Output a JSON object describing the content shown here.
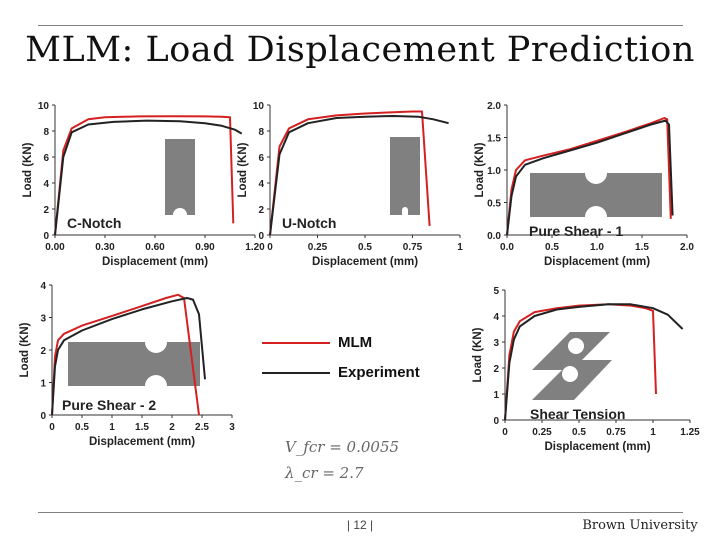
{
  "title": "MLM: Load Displacement Prediction",
  "footer": {
    "page": "| 12 |",
    "brand": "Brown University"
  },
  "colors": {
    "mlm": "#d42020",
    "experiment": "#222222",
    "specimen": "#808080"
  },
  "legend": {
    "mlm": "MLM",
    "experiment": "Experiment"
  },
  "equations": [
    "V_fcr = 0.0055",
    "λ_cr = 2.7"
  ],
  "chart_data": [
    {
      "id": "c-notch",
      "type": "line",
      "label": "C-Notch",
      "xlabel": "Displacement (mm)",
      "ylabel": "Load (KN)",
      "xlim": [
        0,
        1.2
      ],
      "ylim": [
        0,
        10
      ],
      "xticks": [
        0,
        0.3,
        0.6,
        0.9,
        1.2
      ],
      "xtick_labels": [
        "0.00",
        "0.30",
        "0.60",
        "0.90",
        "1.20"
      ],
      "yticks": [
        0,
        2,
        4,
        6,
        8,
        10
      ],
      "ytick_labels": [
        "0",
        "2",
        "4",
        "6",
        "8",
        "10"
      ],
      "series": [
        {
          "name": "MLM",
          "x": [
            0,
            0.05,
            0.1,
            0.2,
            0.3,
            0.5,
            0.7,
            0.9,
            1.0,
            1.05,
            1.07
          ],
          "y": [
            0,
            6.5,
            8.2,
            8.9,
            9.05,
            9.12,
            9.13,
            9.12,
            9.1,
            9.05,
            0.9
          ]
        },
        {
          "name": "Experiment",
          "x": [
            0,
            0.05,
            0.1,
            0.2,
            0.35,
            0.55,
            0.75,
            0.9,
            1.0,
            1.08,
            1.12
          ],
          "y": [
            0,
            6,
            7.9,
            8.5,
            8.7,
            8.8,
            8.75,
            8.6,
            8.4,
            8.1,
            7.8
          ]
        }
      ]
    },
    {
      "id": "u-notch",
      "type": "line",
      "label": "U-Notch",
      "xlabel": "Displacement (mm)",
      "ylabel": "Load (KN)",
      "xlim": [
        0,
        1
      ],
      "ylim": [
        0,
        10
      ],
      "xticks": [
        0,
        0.25,
        0.5,
        0.75,
        1
      ],
      "xtick_labels": [
        "0",
        "0.25",
        "0.5",
        "0.75",
        "1"
      ],
      "yticks": [
        0,
        2,
        4,
        6,
        8,
        10
      ],
      "ytick_labels": [
        "0",
        "2",
        "4",
        "6",
        "8",
        "10"
      ],
      "series": [
        {
          "name": "MLM",
          "x": [
            0,
            0.05,
            0.1,
            0.2,
            0.35,
            0.5,
            0.65,
            0.75,
            0.8,
            0.84
          ],
          "y": [
            0,
            6.8,
            8.2,
            8.9,
            9.2,
            9.35,
            9.45,
            9.5,
            9.5,
            0.7
          ]
        },
        {
          "name": "Experiment",
          "x": [
            0,
            0.05,
            0.1,
            0.2,
            0.35,
            0.5,
            0.65,
            0.78,
            0.86,
            0.94
          ],
          "y": [
            0,
            6.2,
            7.9,
            8.6,
            9.0,
            9.1,
            9.15,
            9.1,
            8.9,
            8.6
          ]
        }
      ]
    },
    {
      "id": "pure-shear-1",
      "type": "line",
      "label": "Pure Shear - 1",
      "xlabel": "Displacement (mm)",
      "ylabel": "Load (KN)",
      "xlim": [
        0,
        2
      ],
      "ylim": [
        0,
        2
      ],
      "xticks": [
        0,
        0.5,
        1,
        1.5,
        2
      ],
      "xtick_labels": [
        "0.0",
        "0.5",
        "1.0",
        "1.5",
        "2.0"
      ],
      "yticks": [
        0,
        0.5,
        1,
        1.5,
        2
      ],
      "ytick_labels": [
        "0.0",
        "0.5",
        "1.0",
        "1.5",
        "2.0"
      ],
      "series": [
        {
          "name": "MLM",
          "x": [
            0,
            0.05,
            0.1,
            0.2,
            0.4,
            0.7,
            1.0,
            1.3,
            1.6,
            1.75,
            1.78,
            1.82
          ],
          "y": [
            0,
            0.7,
            1.0,
            1.15,
            1.22,
            1.32,
            1.45,
            1.58,
            1.72,
            1.8,
            1.78,
            0.25
          ]
        },
        {
          "name": "Experiment",
          "x": [
            0,
            0.05,
            0.1,
            0.2,
            0.4,
            0.7,
            1.0,
            1.3,
            1.6,
            1.76,
            1.8,
            1.84
          ],
          "y": [
            0,
            0.6,
            0.9,
            1.08,
            1.18,
            1.3,
            1.42,
            1.56,
            1.7,
            1.76,
            1.7,
            0.3
          ]
        }
      ]
    },
    {
      "id": "pure-shear-2",
      "type": "line",
      "label": "Pure Shear - 2",
      "xlabel": "Displacement (mm)",
      "ylabel": "Load (KN)",
      "xlim": [
        0,
        3
      ],
      "ylim": [
        0,
        4
      ],
      "xticks": [
        0,
        0.5,
        1,
        1.5,
        2,
        2.5,
        3
      ],
      "xtick_labels": [
        "0",
        "0.5",
        "1",
        "1.5",
        "2",
        "2.5",
        "3"
      ],
      "yticks": [
        0,
        1,
        2,
        3,
        4
      ],
      "ytick_labels": [
        "0",
        "1",
        "2",
        "3",
        "4"
      ],
      "series": [
        {
          "name": "MLM",
          "x": [
            0,
            0.05,
            0.1,
            0.2,
            0.5,
            1.0,
            1.5,
            1.9,
            2.1,
            2.2,
            2.45
          ],
          "y": [
            0,
            1.8,
            2.3,
            2.5,
            2.75,
            3.05,
            3.35,
            3.6,
            3.7,
            3.6,
            0
          ]
        },
        {
          "name": "Experiment",
          "x": [
            0,
            0.05,
            0.1,
            0.2,
            0.5,
            1.0,
            1.5,
            2.0,
            2.25,
            2.35,
            2.45,
            2.55
          ],
          "y": [
            0,
            1.5,
            2.0,
            2.3,
            2.6,
            2.95,
            3.25,
            3.5,
            3.6,
            3.55,
            3.1,
            1.1
          ]
        }
      ]
    },
    {
      "id": "shear-tension",
      "type": "line",
      "label": "Shear Tension",
      "xlabel": "Displacement (mm)",
      "ylabel": "Load (KN)",
      "xlim": [
        0,
        1.25
      ],
      "ylim": [
        0,
        5
      ],
      "xticks": [
        0,
        0.25,
        0.5,
        0.75,
        1,
        1.25
      ],
      "xtick_labels": [
        "0",
        "0.25",
        "0.5",
        "0.75",
        "1",
        "1.25"
      ],
      "yticks": [
        0,
        1,
        2,
        3,
        4,
        5
      ],
      "ytick_labels": [
        "0",
        "1",
        "2",
        "3",
        "4",
        "5"
      ],
      "series": [
        {
          "name": "MLM",
          "x": [
            0,
            0.03,
            0.06,
            0.1,
            0.2,
            0.35,
            0.5,
            0.7,
            0.85,
            0.95,
            1.0,
            1.02
          ],
          "y": [
            0,
            2.5,
            3.4,
            3.8,
            4.15,
            4.3,
            4.4,
            4.45,
            4.4,
            4.3,
            4.2,
            1.0
          ]
        },
        {
          "name": "Experiment",
          "x": [
            0,
            0.03,
            0.06,
            0.1,
            0.2,
            0.35,
            0.5,
            0.7,
            0.85,
            1.0,
            1.1,
            1.2
          ],
          "y": [
            0,
            2.2,
            3.1,
            3.6,
            4.0,
            4.25,
            4.35,
            4.45,
            4.45,
            4.3,
            4.05,
            3.5
          ]
        }
      ]
    }
  ]
}
